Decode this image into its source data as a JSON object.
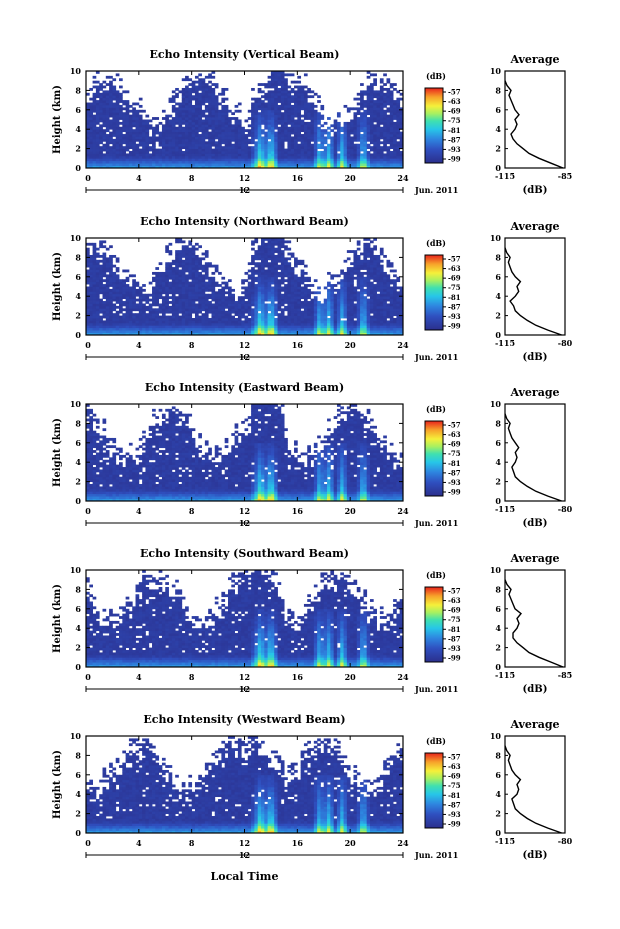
{
  "figure": {
    "xlabel": "Local Time",
    "date_label": "Jun. 2011",
    "hour12_label": "12",
    "ylabel": "Height (km)",
    "colorbar_unit": "(dB)",
    "colorbar_ticks": [
      "-57",
      "-63",
      "-69",
      "-75",
      "-81",
      "-87",
      "-93",
      "-99"
    ],
    "avg_title": "Average",
    "avg_xlabel": "(dB)"
  },
  "chart_data": [
    {
      "type": "heatmap",
      "title": "Echo Intensity (Vertical Beam)",
      "x_range": [
        0,
        24
      ],
      "x_ticks": [
        0,
        4,
        8,
        12,
        16,
        20,
        24
      ],
      "y_range": [
        0,
        10
      ],
      "y_ticks": [
        0,
        2,
        4,
        6,
        8,
        10
      ],
      "colorbar_range_dB": [
        -99,
        -57
      ],
      "average_profile": {
        "title": "Average",
        "xlabel": "(dB)",
        "x_ticks": [
          "-115",
          "-85"
        ],
        "x_range": [
          -115,
          -85
        ],
        "height_km": [
          0.0,
          0.5,
          1.0,
          1.5,
          2.0,
          2.5,
          3.0,
          3.5,
          4.0,
          4.5,
          5.0,
          5.5,
          6.0,
          6.5,
          7.0,
          7.5,
          8.0,
          8.5,
          9.0
        ],
        "value_dB": [
          -86,
          -92,
          -98,
          -103,
          -106,
          -109,
          -111,
          -112,
          -110,
          -109,
          -110,
          -108,
          -110,
          -111,
          -112,
          -113,
          -112,
          -114,
          -115
        ]
      }
    },
    {
      "type": "heatmap",
      "title": "Echo Intensity (Northward Beam)",
      "x_range": [
        0,
        24
      ],
      "x_ticks": [
        0,
        4,
        8,
        12,
        16,
        20,
        24
      ],
      "y_range": [
        0,
        10
      ],
      "y_ticks": [
        0,
        2,
        4,
        6,
        8,
        10
      ],
      "colorbar_range_dB": [
        -99,
        -57
      ],
      "average_profile": {
        "title": "Average",
        "xlabel": "(dB)",
        "x_ticks": [
          "-115",
          "-80"
        ],
        "x_range": [
          -115,
          -80
        ],
        "height_km": [
          0.0,
          0.5,
          1.0,
          1.5,
          2.0,
          2.5,
          3.0,
          3.5,
          4.0,
          4.5,
          5.0,
          5.5,
          6.0,
          6.5,
          7.0,
          7.5,
          8.0,
          8.5,
          9.0
        ],
        "value_dB": [
          -82,
          -90,
          -97,
          -102,
          -106,
          -109,
          -110,
          -112,
          -109,
          -107,
          -108,
          -106,
          -109,
          -111,
          -112,
          -113,
          -112,
          -114,
          -115
        ]
      }
    },
    {
      "type": "heatmap",
      "title": "Echo Intensity (Eastward Beam)",
      "x_range": [
        0,
        24
      ],
      "x_ticks": [
        0,
        4,
        8,
        12,
        16,
        20,
        24
      ],
      "y_range": [
        0,
        10
      ],
      "y_ticks": [
        0,
        2,
        4,
        6,
        8,
        10
      ],
      "colorbar_range_dB": [
        -99,
        -57
      ],
      "average_profile": {
        "title": "Average",
        "xlabel": "(dB)",
        "x_ticks": [
          "-115",
          "-80"
        ],
        "x_range": [
          -115,
          -80
        ],
        "height_km": [
          0.0,
          0.5,
          1.0,
          1.5,
          2.0,
          2.5,
          3.0,
          3.5,
          4.0,
          4.5,
          5.0,
          5.5,
          6.0,
          6.5,
          7.0,
          7.5,
          8.0,
          8.5,
          9.0
        ],
        "value_dB": [
          -82,
          -90,
          -97,
          -102,
          -106,
          -109,
          -110,
          -111,
          -109,
          -108,
          -109,
          -107,
          -109,
          -111,
          -112,
          -113,
          -112,
          -114,
          -115
        ]
      }
    },
    {
      "type": "heatmap",
      "title": "Echo Intensity (Southward Beam)",
      "x_range": [
        0,
        24
      ],
      "x_ticks": [
        0,
        4,
        8,
        12,
        16,
        20,
        24
      ],
      "y_range": [
        0,
        10
      ],
      "y_ticks": [
        0,
        2,
        4,
        6,
        8,
        10
      ],
      "colorbar_range_dB": [
        -99,
        -57
      ],
      "average_profile": {
        "title": "Average",
        "xlabel": "(dB)",
        "x_ticks": [
          "-115",
          "-85"
        ],
        "x_range": [
          -115,
          -85
        ],
        "height_km": [
          0.0,
          0.5,
          1.0,
          1.5,
          2.0,
          2.5,
          3.0,
          3.5,
          4.0,
          4.5,
          5.0,
          5.5,
          6.0,
          6.5,
          7.0,
          7.5,
          8.0,
          8.5,
          9.0
        ],
        "value_dB": [
          -86,
          -92,
          -98,
          -103,
          -106,
          -109,
          -111,
          -111,
          -109,
          -108,
          -109,
          -107,
          -110,
          -111,
          -112,
          -113,
          -112,
          -114,
          -115
        ]
      }
    },
    {
      "type": "heatmap",
      "title": "Echo Intensity (Westward Beam)",
      "x_range": [
        0,
        24
      ],
      "x_ticks": [
        0,
        4,
        8,
        12,
        16,
        20,
        24
      ],
      "y_range": [
        0,
        10
      ],
      "y_ticks": [
        0,
        2,
        4,
        6,
        8,
        10
      ],
      "colorbar_range_dB": [
        -99,
        -57
      ],
      "average_profile": {
        "title": "Average",
        "xlabel": "(dB)",
        "x_ticks": [
          "-115",
          "-80"
        ],
        "x_range": [
          -115,
          -80
        ],
        "height_km": [
          0.0,
          0.5,
          1.0,
          1.5,
          2.0,
          2.5,
          3.0,
          3.5,
          4.0,
          4.5,
          5.0,
          5.5,
          6.0,
          6.5,
          7.0,
          7.5,
          8.0,
          8.5,
          9.0
        ],
        "value_dB": [
          -82,
          -90,
          -97,
          -102,
          -106,
          -109,
          -110,
          -111,
          -108,
          -107,
          -108,
          -106,
          -109,
          -111,
          -112,
          -113,
          -112,
          -114,
          -115
        ]
      }
    }
  ]
}
